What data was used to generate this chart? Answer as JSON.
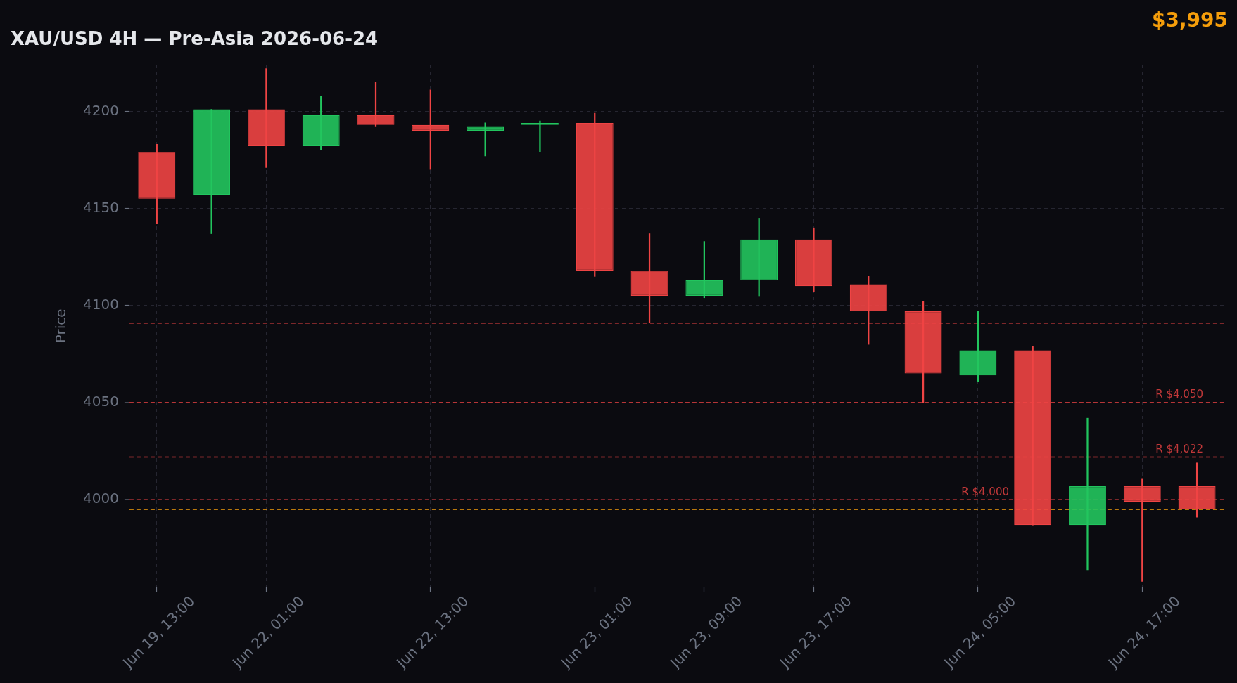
{
  "chart_data": {
    "type": "candlestick",
    "title": "XAU/USD 4H — Pre-Asia 2026-06-24",
    "ylabel": "Price",
    "categories": [
      "Jun 19, 13:00",
      null,
      "Jun 22, 01:00",
      null,
      null,
      "Jun 22, 13:00",
      null,
      null,
      "Jun 23, 01:00",
      null,
      "Jun 23, 09:00",
      null,
      "Jun 23, 17:00",
      null,
      null,
      "Jun 24, 05:00",
      null,
      null,
      "Jun 24, 17:00",
      null
    ],
    "ohlc": [
      [
        4179,
        4183,
        4142,
        4155
      ],
      [
        4157,
        4201,
        4137,
        4201
      ],
      [
        4201,
        4222,
        4171,
        4182
      ],
      [
        4182,
        4208,
        4180,
        4198
      ],
      [
        4198,
        4215,
        4192,
        4193
      ],
      [
        4193,
        4211,
        4170,
        4190
      ],
      [
        4190,
        4194,
        4177,
        4192
      ],
      [
        4193,
        4195,
        4179,
        4194
      ],
      [
        4194,
        4199,
        4115,
        4118
      ],
      [
        4118,
        4137,
        4091,
        4105
      ],
      [
        4105,
        4133,
        4104,
        4113
      ],
      [
        4113,
        4145,
        4105,
        4134
      ],
      [
        4134,
        4140,
        4107,
        4110
      ],
      [
        4111,
        4115,
        4080,
        4097
      ],
      [
        4097,
        4102,
        4050,
        4065
      ],
      [
        4064,
        4097,
        4061,
        4077
      ],
      [
        4077,
        4079,
        3987,
        3987
      ],
      [
        3987,
        4042,
        3964,
        4007
      ],
      [
        4007,
        4011,
        3958,
        3999
      ],
      [
        4007,
        4019,
        3991,
        3995
      ]
    ],
    "colors": [
      "#ef4444",
      "#22c55e",
      "#ef4444",
      "#22c55e",
      "#ef4444",
      "#ef4444",
      "#22c55e",
      "#22c55e",
      "#ef4444",
      "#ef4444",
      "#22c55e",
      "#22c55e",
      "#ef4444",
      "#ef4444",
      "#ef4444",
      "#22c55e",
      "#ef4444",
      "#22c55e",
      "#ef4444",
      "#ef4444"
    ],
    "ylim": [
      3955,
      4224
    ],
    "yticks": [
      4000,
      4050,
      4100,
      4150,
      4200
    ],
    "grid": true,
    "ref_lines": [
      {
        "axis": "y",
        "value": 4091,
        "color": "#ef4444",
        "line_style": "dashed"
      },
      {
        "axis": "y",
        "value": 4050,
        "label": "R $4,050",
        "color": "#ef4444",
        "line_style": "dashed"
      },
      {
        "axis": "y",
        "value": 4022,
        "label": "R $4,022",
        "color": "#ef4444",
        "line_style": "dashed"
      },
      {
        "axis": "y",
        "value": 4000,
        "label": "R $4,000",
        "color": "#ef4444",
        "line_style": "dashed"
      },
      {
        "axis": "y",
        "value": 3995,
        "color": "#f59e0b",
        "line_style": "dashed"
      }
    ],
    "annotations": [
      "$3,995"
    ]
  }
}
